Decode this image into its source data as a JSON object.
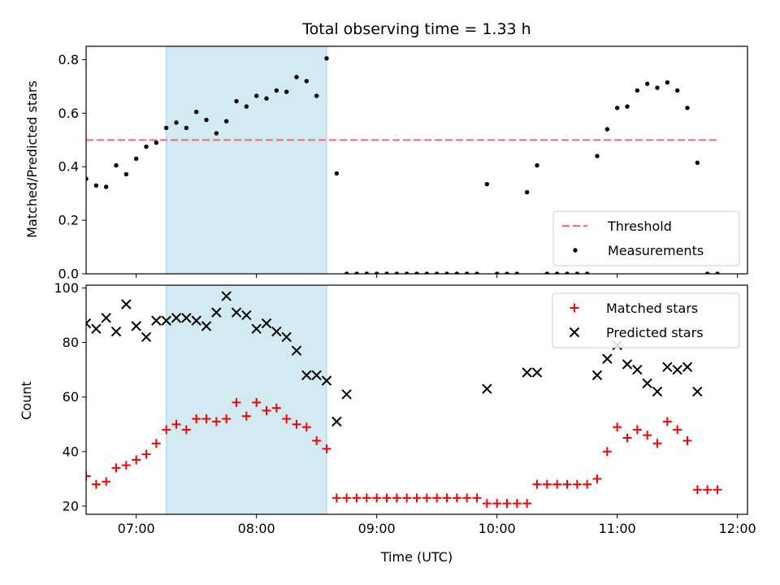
{
  "chart_data": [
    {
      "type": "scatter",
      "title": "Total observing time = 1.33 h",
      "ylabel": "Matched/Predicted stars",
      "ylim": [
        0,
        0.85
      ],
      "xlim": [
        "06:35",
        "12:05"
      ],
      "yticks": [
        0.0,
        0.2,
        0.4,
        0.6,
        0.8
      ],
      "ytick_labels": [
        "0.0",
        "0.2",
        "0.4",
        "0.6",
        "0.8"
      ],
      "shaded_interval": [
        "07:15",
        "08:35"
      ],
      "shaded_color": "#add8e6",
      "threshold": {
        "name": "Threshold",
        "y": 0.5,
        "x_range": [
          "06:35",
          "11:50"
        ],
        "color": "#ff6f6f",
        "style": "dashed"
      },
      "legend": {
        "position": "lower right",
        "entries": [
          "Threshold",
          "Measurements"
        ]
      },
      "series": [
        {
          "name": "Measurements",
          "color": "#000000",
          "marker": "dot",
          "points": [
            [
              "06:35",
              0.355
            ],
            [
              "06:40",
              0.33
            ],
            [
              "06:45",
              0.325
            ],
            [
              "06:50",
              0.405
            ],
            [
              "06:55",
              0.372
            ],
            [
              "07:00",
              0.43
            ],
            [
              "07:05",
              0.475
            ],
            [
              "07:10",
              0.49
            ],
            [
              "07:15",
              0.545
            ],
            [
              "07:20",
              0.565
            ],
            [
              "07:25",
              0.545
            ],
            [
              "07:30",
              0.605
            ],
            [
              "07:35",
              0.575
            ],
            [
              "07:40",
              0.525
            ],
            [
              "07:45",
              0.57
            ],
            [
              "07:50",
              0.645
            ],
            [
              "07:55",
              0.625
            ],
            [
              "08:00",
              0.665
            ],
            [
              "08:05",
              0.655
            ],
            [
              "08:10",
              0.685
            ],
            [
              "08:15",
              0.68
            ],
            [
              "08:20",
              0.735
            ],
            [
              "08:25",
              0.72
            ],
            [
              "08:30",
              0.665
            ],
            [
              "08:35",
              0.805
            ],
            [
              "08:40",
              0.375
            ],
            [
              "08:45",
              0.0
            ],
            [
              "08:50",
              0.0
            ],
            [
              "08:55",
              0.0
            ],
            [
              "09:00",
              0.0
            ],
            [
              "09:05",
              0.0
            ],
            [
              "09:10",
              0.0
            ],
            [
              "09:15",
              0.0
            ],
            [
              "09:20",
              0.0
            ],
            [
              "09:25",
              0.0
            ],
            [
              "09:30",
              0.0
            ],
            [
              "09:35",
              0.0
            ],
            [
              "09:40",
              0.0
            ],
            [
              "09:45",
              0.0
            ],
            [
              "09:50",
              0.0
            ],
            [
              "09:55",
              0.335
            ],
            [
              "10:00",
              0.0
            ],
            [
              "10:05",
              0.0
            ],
            [
              "10:10",
              0.0
            ],
            [
              "10:15",
              0.305
            ],
            [
              "10:20",
              0.405
            ],
            [
              "10:25",
              0.0
            ],
            [
              "10:30",
              0.0
            ],
            [
              "10:35",
              0.0
            ],
            [
              "10:40",
              0.0
            ],
            [
              "10:45",
              0.0
            ],
            [
              "10:50",
              0.44
            ],
            [
              "10:55",
              0.54
            ],
            [
              "11:00",
              0.62
            ],
            [
              "11:05",
              0.625
            ],
            [
              "11:10",
              0.685
            ],
            [
              "11:15",
              0.71
            ],
            [
              "11:20",
              0.695
            ],
            [
              "11:25",
              0.715
            ],
            [
              "11:30",
              0.685
            ],
            [
              "11:35",
              0.62
            ],
            [
              "11:40",
              0.415
            ],
            [
              "11:45",
              0.0
            ],
            [
              "11:50",
              0.0
            ]
          ]
        }
      ]
    },
    {
      "type": "scatter",
      "xlabel": "Time (UTC)",
      "ylabel": "Count",
      "ylim": [
        17,
        101
      ],
      "xlim": [
        "06:35",
        "12:05"
      ],
      "yticks": [
        20,
        40,
        60,
        80,
        100
      ],
      "ytick_labels": [
        "20",
        "40",
        "60",
        "80",
        "100"
      ],
      "xticks": [
        "07:00",
        "08:00",
        "09:00",
        "10:00",
        "11:00",
        "12:00"
      ],
      "xtick_labels": [
        "07:00",
        "08:00",
        "09:00",
        "10:00",
        "11:00",
        "12:00"
      ],
      "shaded_interval": [
        "07:15",
        "08:35"
      ],
      "shaded_color": "#add8e6",
      "legend": {
        "position": "upper right",
        "entries": [
          "Matched stars",
          "Predicted stars"
        ]
      },
      "series": [
        {
          "name": "Matched stars",
          "color": "#ff0000",
          "marker": "plus",
          "points": [
            [
              "06:35",
              31
            ],
            [
              "06:40",
              28
            ],
            [
              "06:45",
              29
            ],
            [
              "06:50",
              34
            ],
            [
              "06:55",
              35
            ],
            [
              "07:00",
              37
            ],
            [
              "07:05",
              39
            ],
            [
              "07:10",
              43
            ],
            [
              "07:15",
              48
            ],
            [
              "07:20",
              50
            ],
            [
              "07:25",
              48
            ],
            [
              "07:30",
              52
            ],
            [
              "07:35",
              52
            ],
            [
              "07:40",
              51
            ],
            [
              "07:45",
              52
            ],
            [
              "07:50",
              58
            ],
            [
              "07:55",
              53
            ],
            [
              "08:00",
              58
            ],
            [
              "08:05",
              55
            ],
            [
              "08:10",
              56
            ],
            [
              "08:15",
              52
            ],
            [
              "08:20",
              50
            ],
            [
              "08:25",
              49
            ],
            [
              "08:30",
              44
            ],
            [
              "08:35",
              41
            ],
            [
              "08:40",
              23
            ],
            [
              "08:45",
              23
            ],
            [
              "08:50",
              23
            ],
            [
              "08:55",
              23
            ],
            [
              "09:00",
              23
            ],
            [
              "09:05",
              23
            ],
            [
              "09:10",
              23
            ],
            [
              "09:15",
              23
            ],
            [
              "09:20",
              23
            ],
            [
              "09:25",
              23
            ],
            [
              "09:30",
              23
            ],
            [
              "09:35",
              23
            ],
            [
              "09:40",
              23
            ],
            [
              "09:45",
              23
            ],
            [
              "09:50",
              23
            ],
            [
              "09:55",
              21
            ],
            [
              "10:00",
              21
            ],
            [
              "10:05",
              21
            ],
            [
              "10:10",
              21
            ],
            [
              "10:15",
              21
            ],
            [
              "10:20",
              28
            ],
            [
              "10:25",
              28
            ],
            [
              "10:30",
              28
            ],
            [
              "10:35",
              28
            ],
            [
              "10:40",
              28
            ],
            [
              "10:45",
              28
            ],
            [
              "10:50",
              30
            ],
            [
              "10:55",
              40
            ],
            [
              "11:00",
              49
            ],
            [
              "11:05",
              45
            ],
            [
              "11:10",
              48
            ],
            [
              "11:15",
              46
            ],
            [
              "11:20",
              43
            ],
            [
              "11:25",
              51
            ],
            [
              "11:30",
              48
            ],
            [
              "11:35",
              44
            ],
            [
              "11:40",
              26
            ],
            [
              "11:45",
              26
            ],
            [
              "11:50",
              26
            ]
          ]
        },
        {
          "name": "Predicted stars",
          "color": "#000000",
          "marker": "x",
          "points": [
            [
              "06:35",
              87
            ],
            [
              "06:40",
              85
            ],
            [
              "06:45",
              89
            ],
            [
              "06:50",
              84
            ],
            [
              "06:55",
              94
            ],
            [
              "07:00",
              86
            ],
            [
              "07:05",
              82
            ],
            [
              "07:10",
              88
            ],
            [
              "07:15",
              88
            ],
            [
              "07:20",
              89
            ],
            [
              "07:25",
              89
            ],
            [
              "07:30",
              88
            ],
            [
              "07:35",
              86
            ],
            [
              "07:40",
              91
            ],
            [
              "07:45",
              97
            ],
            [
              "07:50",
              91
            ],
            [
              "07:55",
              90
            ],
            [
              "08:00",
              85
            ],
            [
              "08:05",
              87
            ],
            [
              "08:10",
              84
            ],
            [
              "08:15",
              82
            ],
            [
              "08:20",
              77
            ],
            [
              "08:25",
              68
            ],
            [
              "08:30",
              68
            ],
            [
              "08:35",
              66
            ],
            [
              "08:40",
              51
            ],
            [
              "08:45",
              61
            ],
            [
              "09:55",
              63
            ],
            [
              "10:15",
              69
            ],
            [
              "10:20",
              69
            ],
            [
              "10:50",
              68
            ],
            [
              "10:55",
              74
            ],
            [
              "11:00",
              79
            ],
            [
              "11:05",
              72
            ],
            [
              "11:10",
              70
            ],
            [
              "11:15",
              65
            ],
            [
              "11:20",
              62
            ],
            [
              "11:25",
              71
            ],
            [
              "11:30",
              70
            ],
            [
              "11:35",
              71
            ],
            [
              "11:40",
              62
            ]
          ]
        }
      ]
    }
  ]
}
